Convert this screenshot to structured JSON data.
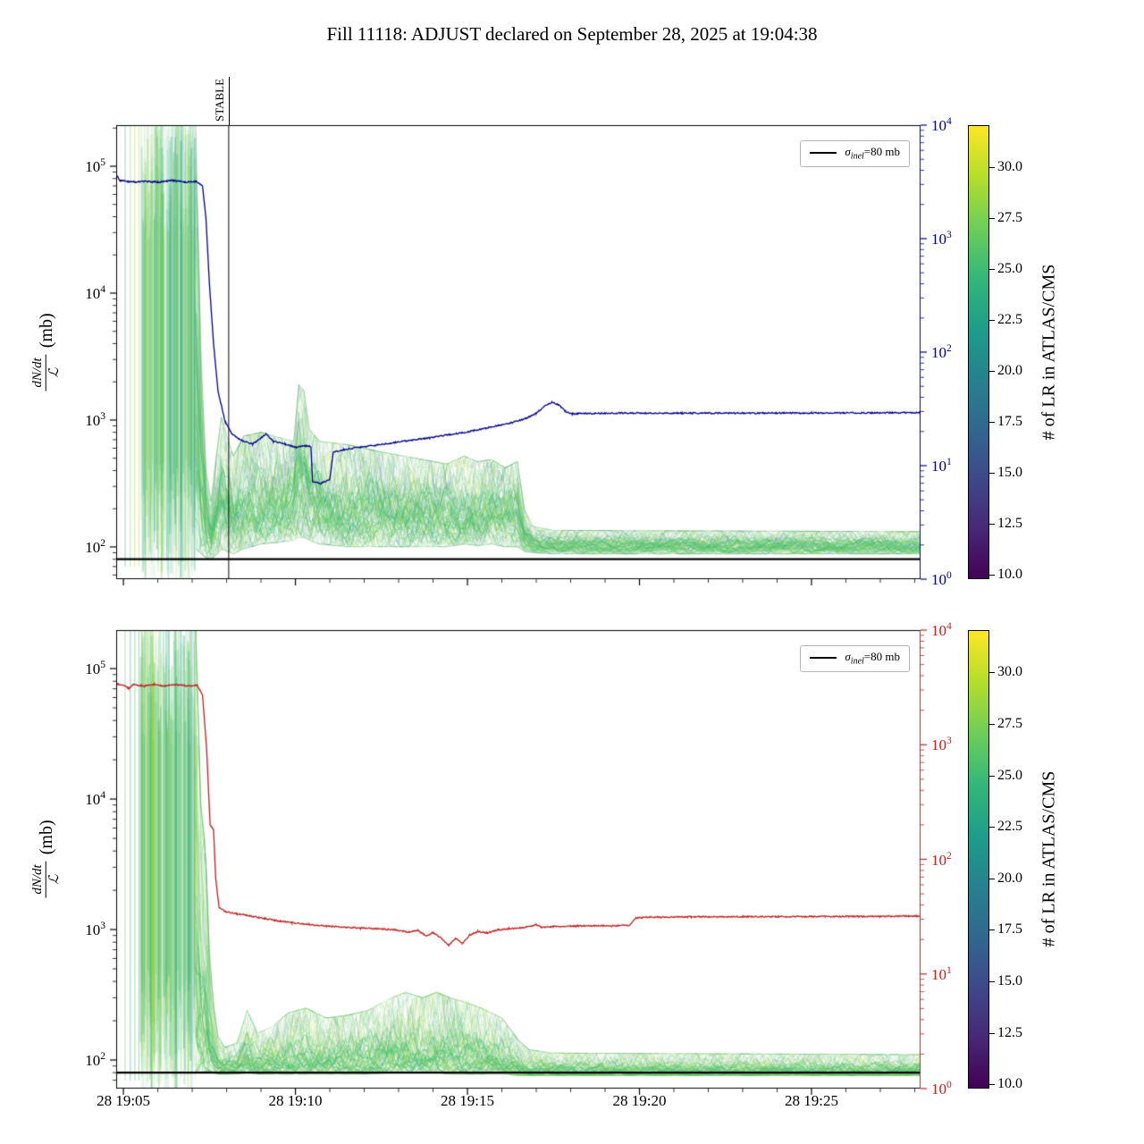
{
  "title": "Fill 11118: ADJUST declared on September 28, 2025 at 19:04:38",
  "chart_data": {
    "type": "line",
    "title": "Fill 11118: ADJUST declared on September 28, 2025 at 19:04:38",
    "x_axis": {
      "min": 4.79,
      "max": 28.17,
      "ticks": [
        5,
        10,
        15,
        20,
        25
      ],
      "tick_labels": [
        "28 19:05",
        "28 19:10",
        "28 19:15",
        "28 19:20",
        "28 19:25"
      ],
      "minor_step_minutes": 1
    },
    "ylabel": {
      "numerator": "dN/dt",
      "denominator": "ℒ",
      "unit": "(mb)"
    },
    "legend": {
      "symbol": "σ",
      "subscript": "inel",
      "suffix": "=80 mb"
    },
    "sigma_inel_mb": 80,
    "sigma_line_color": "#000000",
    "colorbar": {
      "label": "# of LR in ATLAS/CMS",
      "ticks": [
        10.0,
        12.5,
        15.0,
        17.5,
        20.0,
        22.5,
        25.0,
        27.5,
        30.0
      ],
      "vmin": 9.8,
      "vmax": 32.05,
      "viridis_stops": [
        "#440154",
        "#482878",
        "#3e4989",
        "#31688e",
        "#26828e",
        "#1f9e89",
        "#35b779",
        "#6ece58",
        "#b5de2b",
        "#fde725"
      ]
    },
    "panels": [
      {
        "name": "top",
        "axis_color": "#00008b",
        "left_log_range": [
          1.746,
          5.324
        ],
        "left_tick_exponents": [
          2,
          3,
          4,
          5
        ],
        "right_log_range": [
          0,
          4
        ],
        "right_tick_exponents": [
          0,
          1,
          2,
          3,
          4
        ],
        "show_x_labels": false,
        "stable_line": {
          "t": 8.06,
          "label": "STABLE"
        },
        "trace": {
          "points": [
            [
              4.79,
              3700
            ],
            [
              4.9,
              3250
            ],
            [
              5.2,
              3150
            ],
            [
              5.6,
              3200
            ],
            [
              6.0,
              3150
            ],
            [
              6.4,
              3250
            ],
            [
              6.8,
              3150
            ],
            [
              7.1,
              3200
            ],
            [
              7.3,
              2900
            ],
            [
              7.4,
              1500
            ],
            [
              7.5,
              400
            ],
            [
              7.62,
              120
            ],
            [
              7.75,
              45
            ],
            [
              7.95,
              25
            ],
            [
              8.15,
              19
            ],
            [
              8.45,
              16.5
            ],
            [
              8.75,
              15.5
            ],
            [
              9.0,
              17.5
            ],
            [
              9.15,
              19
            ],
            [
              9.35,
              16.5
            ],
            [
              9.7,
              15.5
            ],
            [
              10.0,
              14.5
            ],
            [
              10.3,
              15
            ],
            [
              10.45,
              14.8
            ],
            [
              10.5,
              7.2
            ],
            [
              10.75,
              7.0
            ],
            [
              11.0,
              7.6
            ],
            [
              11.1,
              13.2
            ],
            [
              11.4,
              13.8
            ],
            [
              11.9,
              14.6
            ],
            [
              12.4,
              15.2
            ],
            [
              12.9,
              16
            ],
            [
              13.4,
              16.8
            ],
            [
              13.9,
              17.6
            ],
            [
              14.4,
              18.6
            ],
            [
              14.9,
              19.6
            ],
            [
              15.4,
              21
            ],
            [
              15.9,
              22.6
            ],
            [
              16.3,
              24
            ],
            [
              16.7,
              26
            ],
            [
              17.0,
              29
            ],
            [
              17.25,
              33.5
            ],
            [
              17.45,
              36
            ],
            [
              17.65,
              34.5
            ],
            [
              17.85,
              30
            ],
            [
              18.05,
              28.6
            ],
            [
              18.4,
              28.8
            ],
            [
              19.5,
              29
            ],
            [
              21,
              29
            ],
            [
              23,
              29
            ],
            [
              25,
              29.1
            ],
            [
              27,
              29.2
            ],
            [
              28.17,
              29.3
            ]
          ]
        },
        "band": {
          "stripes_t": [
            5.05,
            5.2,
            5.33,
            5.45
          ],
          "blob": {
            "t0": 5.5,
            "t1": 7.1
          },
          "envelope_t": [
            7.1,
            7.25,
            7.4,
            7.55,
            7.7,
            7.85,
            8.0,
            8.2,
            8.5,
            9.0,
            9.5,
            9.95,
            10.1,
            10.25,
            10.4,
            10.7,
            11.5,
            12.5,
            13.5,
            14.4,
            14.9,
            15.3,
            15.7,
            16.1,
            16.45,
            16.65,
            16.9,
            17.5,
            28.17
          ],
          "envelope_lo": [
            95,
            88,
            82,
            80,
            86,
            95,
            92,
            88,
            96,
            105,
            108,
            112,
            118,
            118,
            112,
            105,
            100,
            100,
            100,
            100,
            105,
            102,
            105,
            100,
            100,
            92,
            90,
            88,
            88
          ],
          "envelope_hi": [
            210000,
            3500,
            400,
            230,
            520,
            1050,
            750,
            520,
            750,
            800,
            730,
            680,
            1900,
            1700,
            850,
            680,
            640,
            560,
            500,
            450,
            520,
            470,
            490,
            420,
            470,
            200,
            145,
            135,
            132
          ]
        }
      },
      {
        "name": "bottom",
        "axis_color": "#c21f1f",
        "left_log_range": [
          1.781,
          5.295
        ],
        "left_tick_exponents": [
          2,
          3,
          4,
          5
        ],
        "right_log_range": [
          0,
          4
        ],
        "right_tick_exponents": [
          0,
          1,
          2,
          3,
          4
        ],
        "show_x_labels": true,
        "stable_line": null,
        "trace": {
          "points": [
            [
              4.79,
              3400
            ],
            [
              5.0,
              3300
            ],
            [
              5.15,
              3100
            ],
            [
              5.3,
              3350
            ],
            [
              5.6,
              3250
            ],
            [
              5.9,
              3350
            ],
            [
              6.2,
              3250
            ],
            [
              6.5,
              3350
            ],
            [
              6.9,
              3250
            ],
            [
              7.15,
              3300
            ],
            [
              7.3,
              2700
            ],
            [
              7.42,
              900
            ],
            [
              7.52,
              200
            ],
            [
              7.62,
              180
            ],
            [
              7.68,
              70
            ],
            [
              7.78,
              38
            ],
            [
              7.95,
              35
            ],
            [
              8.3,
              33.5
            ],
            [
              8.7,
              32
            ],
            [
              9.1,
              30.5
            ],
            [
              9.5,
              29
            ],
            [
              9.9,
              28
            ],
            [
              10.4,
              27
            ],
            [
              10.9,
              26.2
            ],
            [
              11.4,
              25.6
            ],
            [
              11.9,
              25.2
            ],
            [
              12.4,
              24.8
            ],
            [
              12.9,
              24.2
            ],
            [
              13.3,
              23.2
            ],
            [
              13.55,
              24
            ],
            [
              13.8,
              21.5
            ],
            [
              14.0,
              23
            ],
            [
              14.25,
              20.5
            ],
            [
              14.45,
              17.8
            ],
            [
              14.65,
              20.5
            ],
            [
              14.85,
              18.5
            ],
            [
              15.05,
              21.5
            ],
            [
              15.3,
              23.5
            ],
            [
              15.6,
              22.8
            ],
            [
              15.9,
              24.3
            ],
            [
              16.2,
              24.8
            ],
            [
              16.6,
              25.2
            ],
            [
              17.0,
              26.8
            ],
            [
              17.15,
              25.6
            ],
            [
              17.5,
              25.9
            ],
            [
              18.0,
              26.1
            ],
            [
              18.6,
              26.3
            ],
            [
              19.2,
              26.4
            ],
            [
              19.7,
              26.6
            ],
            [
              19.9,
              30.8
            ],
            [
              20.3,
              31.3
            ],
            [
              21.5,
              31.5
            ],
            [
              23,
              31.6
            ],
            [
              25,
              31.7
            ],
            [
              27,
              31.8
            ],
            [
              28.17,
              32
            ]
          ]
        },
        "band": {
          "stripes_t": [
            5.05,
            5.2,
            5.33,
            5.45
          ],
          "blob": {
            "t0": 5.5,
            "t1": 7.1
          },
          "envelope_t": [
            7.1,
            7.25,
            7.38,
            7.5,
            7.62,
            7.75,
            7.95,
            8.3,
            8.6,
            8.9,
            9.3,
            9.8,
            10.3,
            10.9,
            11.5,
            12.1,
            12.8,
            13.2,
            13.7,
            14.1,
            14.5,
            14.9,
            15.4,
            16.0,
            16.5,
            16.8,
            17.5,
            28.17
          ],
          "envelope_lo": [
            80,
            80,
            82,
            82,
            80,
            78,
            78,
            78,
            80,
            78,
            78,
            78,
            78,
            78,
            78,
            78,
            80,
            80,
            80,
            80,
            78,
            78,
            78,
            78,
            76,
            76,
            76,
            76
          ],
          "envelope_hi": [
            200000,
            9000,
            4200,
            700,
            260,
            150,
            125,
            135,
            240,
            160,
            180,
            230,
            250,
            210,
            220,
            240,
            300,
            330,
            300,
            330,
            300,
            280,
            250,
            210,
            140,
            120,
            113,
            110
          ]
        }
      }
    ]
  }
}
